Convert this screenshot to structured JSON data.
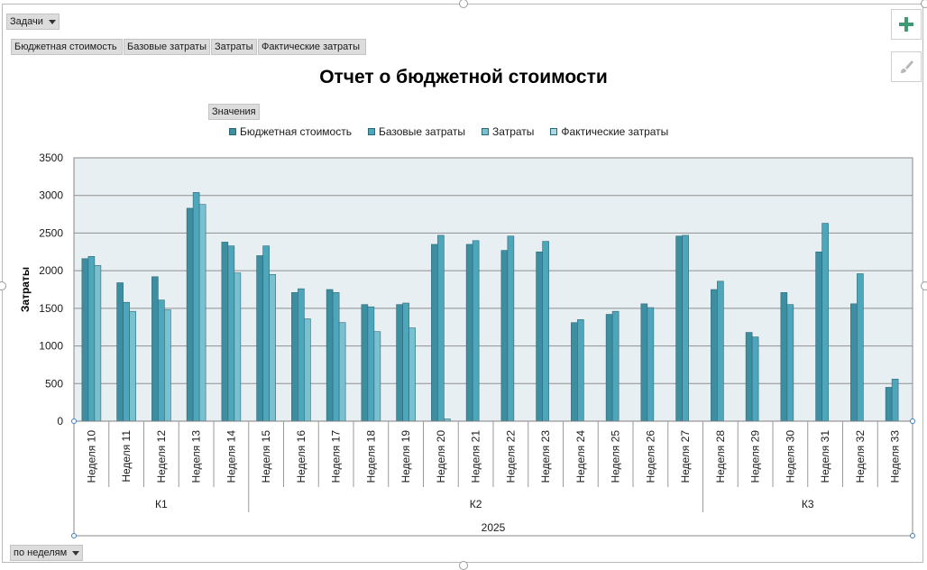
{
  "filters": {
    "tasks_label": "Задачи",
    "values_label": "Значения",
    "period_label": "по неделям",
    "series_buttons": [
      "Бюджетная стоимость",
      "Базовые затраты",
      "Затраты",
      "Фактические затраты"
    ]
  },
  "side_buttons": {
    "add_icon": "plus-icon",
    "style_icon": "brush-icon"
  },
  "colors": {
    "series": [
      "#3d8ea0",
      "#4ea6bb",
      "#79c1d0",
      "#acd8e2"
    ],
    "plot_bg": "#e8eff3",
    "grid": "#8f8f8f"
  },
  "chart_data": {
    "type": "bar",
    "title": "Отчет о бюджетной стоимости",
    "ylabel": "Затраты",
    "xlabel": "",
    "ylim": [
      0,
      3500
    ],
    "yticks": [
      0,
      500,
      1000,
      1500,
      2000,
      2500,
      3000,
      3500
    ],
    "grid": true,
    "legend_position": "top",
    "categories": [
      "Неделя 10",
      "Неделя 11",
      "Неделя 12",
      "Неделя 13",
      "Неделя 14",
      "Неделя 15",
      "Неделя 16",
      "Неделя 17",
      "Неделя 18",
      "Неделя 19",
      "Неделя 20",
      "Неделя 21",
      "Неделя 22",
      "Неделя 23",
      "Неделя 24",
      "Неделя 25",
      "Неделя 26",
      "Неделя 27",
      "Неделя 28",
      "Неделя 29",
      "Неделя 30",
      "Неделя 31",
      "Неделя 32",
      "Неделя 33"
    ],
    "quarters": [
      {
        "label": "К1",
        "count": 5
      },
      {
        "label": "К2",
        "count": 13
      },
      {
        "label": "К3",
        "count": 6
      }
    ],
    "year": "2025",
    "series": [
      {
        "name": "Бюджетная стоимость",
        "values": [
          2160,
          1840,
          1920,
          2830,
          2380,
          2200,
          1710,
          1750,
          1550,
          1550,
          2350,
          2350,
          2270,
          2250,
          1310,
          1420,
          1560,
          2460,
          1750,
          1180,
          1710,
          2250,
          1560,
          450
        ]
      },
      {
        "name": "Базовые затраты",
        "values": [
          2190,
          1580,
          1610,
          3040,
          2330,
          2330,
          1760,
          1710,
          1520,
          1570,
          2470,
          2400,
          2460,
          2390,
          1350,
          1460,
          1510,
          2470,
          1860,
          1120,
          1550,
          2630,
          1960,
          560
        ]
      },
      {
        "name": "Затраты",
        "values": [
          2070,
          1460,
          1480,
          2880,
          1970,
          1950,
          1360,
          1310,
          1190,
          1240,
          30,
          null,
          null,
          null,
          null,
          null,
          null,
          null,
          null,
          null,
          null,
          null,
          null,
          null
        ]
      },
      {
        "name": "Фактические затраты",
        "values": [
          null,
          null,
          null,
          null,
          null,
          null,
          null,
          null,
          null,
          null,
          null,
          null,
          null,
          null,
          null,
          null,
          null,
          null,
          null,
          null,
          null,
          null,
          null,
          null
        ]
      }
    ]
  }
}
